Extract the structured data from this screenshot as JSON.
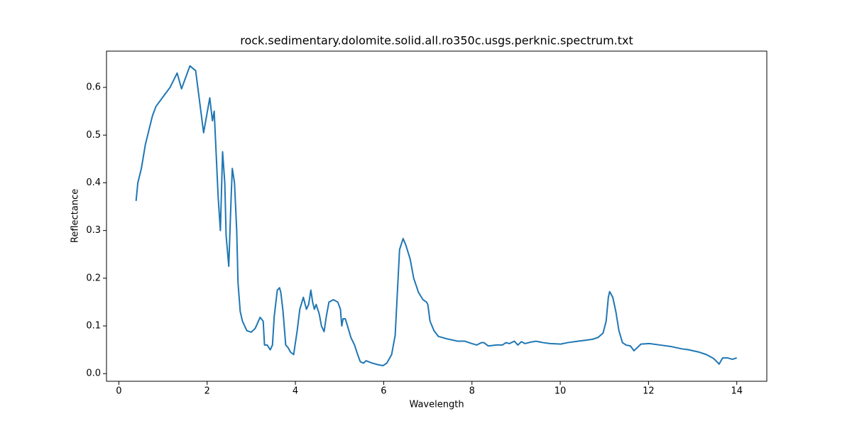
{
  "chart_data": {
    "type": "line",
    "title": "rock.sedimentary.dolomite.solid.all.ro350c.usgs.perknic.spectrum.txt",
    "xlabel": "Wavelength",
    "ylabel": "Reflectance",
    "color": "#1f77b4",
    "x": [
      0.39,
      0.43,
      0.51,
      0.6,
      0.68,
      0.76,
      0.84,
      1.0,
      1.16,
      1.32,
      1.42,
      1.61,
      1.74,
      1.92,
      2.06,
      2.12,
      2.16,
      2.25,
      2.3,
      2.35,
      2.4,
      2.43,
      2.49,
      2.54,
      2.57,
      2.62,
      2.67,
      2.7,
      2.75,
      2.8,
      2.9,
      3.0,
      3.09,
      3.2,
      3.27,
      3.3,
      3.36,
      3.43,
      3.48,
      3.52,
      3.59,
      3.64,
      3.67,
      3.72,
      3.78,
      3.83,
      3.89,
      3.96,
      4.04,
      4.1,
      4.18,
      4.25,
      4.3,
      4.35,
      4.39,
      4.43,
      4.47,
      4.54,
      4.59,
      4.65,
      4.7,
      4.76,
      4.86,
      4.96,
      5.02,
      5.05,
      5.08,
      5.13,
      5.18,
      5.26,
      5.34,
      5.41,
      5.47,
      5.54,
      5.6,
      5.74,
      5.9,
      5.99,
      6.07,
      6.18,
      6.26,
      6.31,
      6.36,
      6.44,
      6.5,
      6.6,
      6.68,
      6.79,
      6.89,
      6.97,
      7.0,
      7.05,
      7.14,
      7.24,
      7.43,
      7.68,
      7.84,
      8.0,
      8.11,
      8.21,
      8.27,
      8.37,
      8.56,
      8.69,
      8.77,
      8.85,
      8.96,
      9.04,
      9.12,
      9.2,
      9.33,
      9.45,
      9.61,
      9.77,
      10.01,
      10.17,
      10.41,
      10.57,
      10.73,
      10.86,
      10.97,
      11.04,
      11.09,
      11.12,
      11.19,
      11.26,
      11.33,
      11.41,
      11.49,
      11.59,
      11.67,
      11.75,
      11.83,
      12.02,
      12.26,
      12.5,
      12.75,
      12.91,
      13.15,
      13.31,
      13.47,
      13.55,
      13.6,
      13.68,
      13.79,
      13.9,
      14.0
    ],
    "values": [
      0.362,
      0.4,
      0.43,
      0.48,
      0.51,
      0.54,
      0.56,
      0.58,
      0.6,
      0.63,
      0.597,
      0.645,
      0.635,
      0.505,
      0.578,
      0.53,
      0.55,
      0.37,
      0.3,
      0.465,
      0.4,
      0.29,
      0.225,
      0.36,
      0.43,
      0.4,
      0.3,
      0.19,
      0.13,
      0.11,
      0.09,
      0.087,
      0.095,
      0.118,
      0.11,
      0.06,
      0.06,
      0.05,
      0.06,
      0.12,
      0.175,
      0.18,
      0.17,
      0.13,
      0.06,
      0.055,
      0.045,
      0.04,
      0.09,
      0.135,
      0.16,
      0.135,
      0.145,
      0.175,
      0.15,
      0.135,
      0.145,
      0.125,
      0.1,
      0.088,
      0.12,
      0.15,
      0.155,
      0.15,
      0.135,
      0.1,
      0.115,
      0.115,
      0.1,
      0.075,
      0.06,
      0.04,
      0.025,
      0.022,
      0.027,
      0.022,
      0.018,
      0.017,
      0.022,
      0.04,
      0.08,
      0.17,
      0.26,
      0.283,
      0.27,
      0.24,
      0.2,
      0.17,
      0.155,
      0.15,
      0.145,
      0.11,
      0.09,
      0.078,
      0.073,
      0.068,
      0.068,
      0.063,
      0.06,
      0.065,
      0.065,
      0.058,
      0.06,
      0.06,
      0.065,
      0.063,
      0.068,
      0.06,
      0.067,
      0.063,
      0.066,
      0.068,
      0.065,
      0.063,
      0.062,
      0.065,
      0.068,
      0.07,
      0.072,
      0.076,
      0.085,
      0.11,
      0.16,
      0.172,
      0.16,
      0.13,
      0.09,
      0.065,
      0.06,
      0.058,
      0.048,
      0.055,
      0.062,
      0.063,
      0.06,
      0.057,
      0.052,
      0.05,
      0.045,
      0.04,
      0.032,
      0.025,
      0.02,
      0.033,
      0.033,
      0.03,
      0.033
    ],
    "xlim": [
      -0.28,
      14.68
    ],
    "xticks": [
      0,
      2,
      4,
      6,
      8,
      10,
      12,
      14
    ],
    "ylim": [
      -0.016,
      0.676
    ],
    "yticks": [
      {
        "value": 0,
        "label": "0.0"
      },
      0.1,
      0.2,
      0.3,
      0.4,
      0.5,
      0.6
    ]
  }
}
